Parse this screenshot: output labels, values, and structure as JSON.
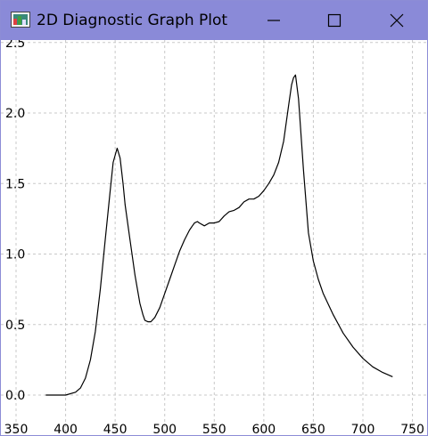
{
  "window": {
    "title": "2D Diagnostic Graph Plot",
    "titlebar_color": "#8a8ad8",
    "controls": {
      "minimize": "minimize-icon",
      "maximize": "maximize-icon",
      "close": "close-icon"
    }
  },
  "chart_data": {
    "type": "line",
    "title": "",
    "xlabel": "",
    "ylabel": "",
    "xlim": [
      350,
      760
    ],
    "ylim": [
      0,
      2.5
    ],
    "x_ticks": [
      "350",
      "400",
      "450",
      "500",
      "550",
      "600",
      "650",
      "700",
      "750"
    ],
    "y_ticks": [
      "0.0",
      "0.5",
      "1.0",
      "1.5",
      "2.0",
      "2.5"
    ],
    "grid": true,
    "line_color": "#000000",
    "series": [
      {
        "x": [
          380,
          390,
          400,
          410,
          415,
          420,
          425,
          430,
          435,
          440,
          445,
          448,
          450,
          452,
          455,
          458,
          460,
          465,
          470,
          475,
          478,
          480,
          483,
          486,
          490,
          495,
          500,
          505,
          510,
          515,
          520,
          525,
          528,
          530,
          533,
          535,
          540,
          545,
          550,
          555,
          560,
          565,
          570,
          575,
          580,
          585,
          590,
          595,
          600,
          605,
          610,
          615,
          620,
          625,
          628,
          630,
          632,
          635,
          640,
          645,
          650,
          655,
          660,
          670,
          680,
          690,
          700,
          710,
          720,
          730
        ],
        "y": [
          0.0,
          0.0,
          0.0,
          0.02,
          0.05,
          0.12,
          0.25,
          0.45,
          0.75,
          1.1,
          1.45,
          1.65,
          1.7,
          1.75,
          1.68,
          1.5,
          1.35,
          1.1,
          0.85,
          0.65,
          0.57,
          0.53,
          0.52,
          0.52,
          0.55,
          0.62,
          0.72,
          0.82,
          0.92,
          1.02,
          1.1,
          1.17,
          1.2,
          1.22,
          1.23,
          1.22,
          1.2,
          1.22,
          1.22,
          1.23,
          1.27,
          1.3,
          1.31,
          1.33,
          1.37,
          1.39,
          1.39,
          1.41,
          1.45,
          1.5,
          1.56,
          1.65,
          1.8,
          2.05,
          2.2,
          2.25,
          2.27,
          2.1,
          1.6,
          1.15,
          0.95,
          0.82,
          0.72,
          0.57,
          0.44,
          0.34,
          0.26,
          0.2,
          0.16,
          0.13
        ]
      }
    ]
  }
}
